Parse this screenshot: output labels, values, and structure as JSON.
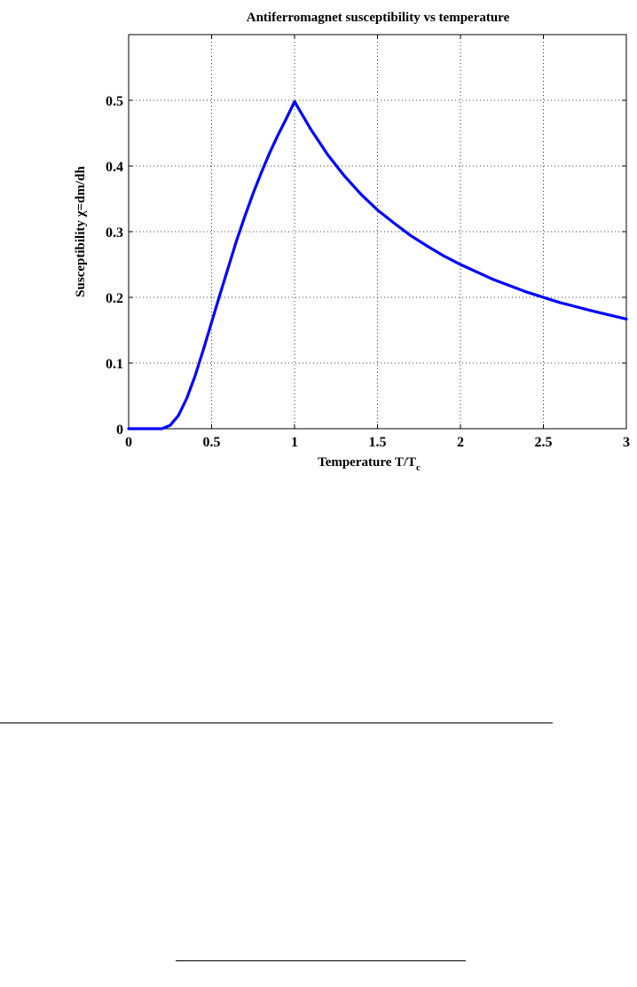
{
  "chart_data": {
    "type": "line",
    "title": "Antiferromagnet susceptibility vs temperature",
    "xlabel": "Temperature T/T",
    "xlabel_subscript": "c",
    "ylabel": "Susceptibility χ=dm/dh",
    "xlim": [
      0,
      3
    ],
    "ylim": [
      0,
      0.6
    ],
    "xticks": [
      "0",
      "0.5",
      "1",
      "1.5",
      "2",
      "2.5",
      "3"
    ],
    "yticks": [
      "0",
      "0.1",
      "0.2",
      "0.3",
      "0.4",
      "0.5"
    ],
    "grid": true,
    "line_color": "#0000ff",
    "series": [
      {
        "x": [
          0,
          0.2,
          0.25,
          0.3,
          0.35,
          0.4,
          0.45,
          0.5,
          0.55,
          0.6,
          0.65,
          0.7,
          0.75,
          0.8,
          0.85,
          0.9,
          0.95,
          1.0,
          1.1,
          1.2,
          1.3,
          1.4,
          1.5,
          1.6,
          1.7,
          1.8,
          1.9,
          2.0,
          2.2,
          2.4,
          2.6,
          2.8,
          3.0
        ],
        "y": [
          0,
          0,
          0.005,
          0.02,
          0.046,
          0.08,
          0.12,
          0.162,
          0.204,
          0.245,
          0.286,
          0.323,
          0.358,
          0.39,
          0.42,
          0.447,
          0.472,
          0.498,
          0.455,
          0.417,
          0.385,
          0.357,
          0.333,
          0.313,
          0.294,
          0.278,
          0.263,
          0.25,
          0.227,
          0.208,
          0.192,
          0.179,
          0.167
        ]
      }
    ]
  }
}
